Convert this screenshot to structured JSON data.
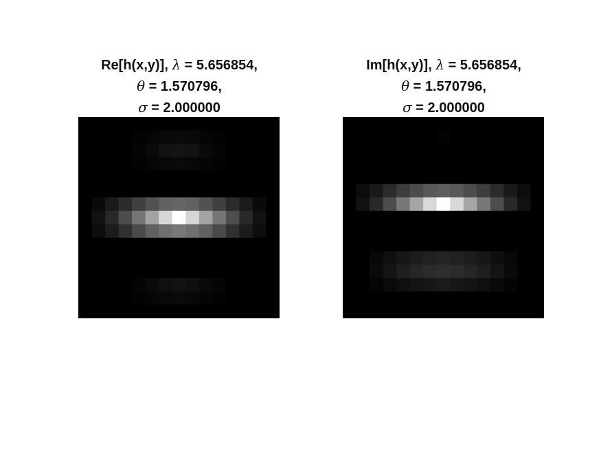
{
  "chart_data": [
    {
      "type": "heatmap",
      "colormap": "gray",
      "grid": false,
      "title_lines": [
        {
          "parts": [
            {
              "text": "Re[h(x,y)], ",
              "greek": false
            },
            {
              "text": "λ",
              "greek": true
            },
            {
              "text": " = 5.656854,",
              "greek": false
            }
          ]
        },
        {
          "parts": [
            {
              "text": "θ",
              "greek": true
            },
            {
              "text": " = 1.570796,",
              "greek": false
            }
          ]
        },
        {
          "parts": [
            {
              "text": "σ",
              "greek": true
            },
            {
              "text": " = 2.000000",
              "greek": false
            }
          ]
        }
      ],
      "rows": 15,
      "cols": 15,
      "values": [
        [
          0,
          0,
          0,
          0,
          0,
          0,
          0,
          0,
          0,
          0,
          0,
          0,
          0,
          0,
          0
        ],
        [
          0,
          0,
          0,
          0,
          0.01,
          0.02,
          0.03,
          0.04,
          0.03,
          0.02,
          0.01,
          0,
          0,
          0,
          0
        ],
        [
          0,
          0,
          0,
          0,
          0.02,
          0.04,
          0.07,
          0.08,
          0.07,
          0.04,
          0.02,
          0,
          0,
          0,
          0
        ],
        [
          0,
          0,
          0,
          0,
          0.01,
          0.02,
          0.03,
          0.04,
          0.03,
          0.02,
          0.01,
          0,
          0,
          0,
          0
        ],
        [
          0,
          0,
          0,
          0,
          0,
          0,
          0,
          0,
          0,
          0,
          0,
          0,
          0,
          0,
          0
        ],
        [
          0,
          0,
          0,
          0,
          0,
          0,
          0,
          0,
          0,
          0,
          0,
          0,
          0,
          0,
          0
        ],
        [
          0,
          0.04,
          0.1,
          0.17,
          0.25,
          0.32,
          0.38,
          0.4,
          0.38,
          0.32,
          0.25,
          0.17,
          0.1,
          0.04,
          0
        ],
        [
          0,
          0.07,
          0.16,
          0.3,
          0.46,
          0.64,
          0.84,
          1.0,
          0.84,
          0.64,
          0.46,
          0.3,
          0.16,
          0.07,
          0
        ],
        [
          0,
          0.05,
          0.11,
          0.19,
          0.29,
          0.38,
          0.44,
          0.47,
          0.44,
          0.38,
          0.29,
          0.19,
          0.11,
          0.05,
          0
        ],
        [
          0,
          0,
          0,
          0,
          0,
          0,
          0,
          0,
          0,
          0,
          0,
          0,
          0,
          0,
          0
        ],
        [
          0,
          0,
          0,
          0,
          0,
          0,
          0,
          0,
          0,
          0,
          0,
          0,
          0,
          0,
          0
        ],
        [
          0,
          0,
          0,
          0,
          0,
          0,
          0,
          0,
          0,
          0,
          0,
          0,
          0,
          0,
          0
        ],
        [
          0,
          0,
          0,
          0,
          0.02,
          0.04,
          0.06,
          0.07,
          0.06,
          0.04,
          0.02,
          0,
          0,
          0,
          0
        ],
        [
          0,
          0,
          0,
          0,
          0.01,
          0.02,
          0.03,
          0.04,
          0.03,
          0.02,
          0.01,
          0,
          0,
          0,
          0
        ],
        [
          0,
          0,
          0,
          0,
          0,
          0,
          0,
          0,
          0,
          0,
          0,
          0,
          0,
          0,
          0
        ]
      ]
    },
    {
      "type": "heatmap",
      "colormap": "gray",
      "grid": false,
      "title_lines": [
        {
          "parts": [
            {
              "text": "Im[h(x,y)], ",
              "greek": false
            },
            {
              "text": "λ",
              "greek": true
            },
            {
              "text": " = 5.656854,",
              "greek": false
            }
          ]
        },
        {
          "parts": [
            {
              "text": "θ",
              "greek": true
            },
            {
              "text": " = 1.570796,",
              "greek": false
            }
          ]
        },
        {
          "parts": [
            {
              "text": "σ",
              "greek": true
            },
            {
              "text": " = 2.000000",
              "greek": false
            }
          ]
        }
      ],
      "rows": 15,
      "cols": 15,
      "values": [
        [
          0,
          0,
          0,
          0,
          0,
          0,
          0,
          0,
          0,
          0,
          0,
          0,
          0,
          0,
          0
        ],
        [
          0,
          0,
          0,
          0,
          0,
          0,
          0,
          0.01,
          0,
          0,
          0,
          0,
          0,
          0,
          0
        ],
        [
          0,
          0,
          0,
          0,
          0,
          0,
          0,
          0,
          0,
          0,
          0,
          0,
          0,
          0,
          0
        ],
        [
          0,
          0,
          0,
          0,
          0,
          0,
          0,
          0,
          0,
          0,
          0,
          0,
          0,
          0,
          0
        ],
        [
          0,
          0,
          0,
          0,
          0,
          0,
          0,
          0,
          0,
          0,
          0,
          0,
          0,
          0,
          0
        ],
        [
          0,
          0.05,
          0.1,
          0.17,
          0.24,
          0.3,
          0.35,
          0.37,
          0.35,
          0.3,
          0.24,
          0.17,
          0.1,
          0.05,
          0
        ],
        [
          0,
          0.07,
          0.16,
          0.3,
          0.47,
          0.65,
          0.85,
          1.0,
          0.85,
          0.65,
          0.47,
          0.3,
          0.16,
          0.07,
          0
        ],
        [
          0,
          0,
          0,
          0,
          0,
          0,
          0,
          0,
          0,
          0,
          0,
          0,
          0,
          0,
          0
        ],
        [
          0,
          0,
          0,
          0,
          0,
          0,
          0,
          0,
          0,
          0,
          0,
          0,
          0,
          0,
          0
        ],
        [
          0,
          0,
          0,
          0,
          0,
          0,
          0,
          0,
          0,
          0,
          0,
          0,
          0,
          0,
          0
        ],
        [
          0,
          0,
          0.03,
          0.06,
          0.09,
          0.11,
          0.13,
          0.14,
          0.13,
          0.11,
          0.09,
          0.06,
          0.03,
          0,
          0
        ],
        [
          0,
          0,
          0.04,
          0.08,
          0.12,
          0.15,
          0.17,
          0.18,
          0.17,
          0.15,
          0.12,
          0.08,
          0.04,
          0,
          0
        ],
        [
          0,
          0,
          0.02,
          0.04,
          0.06,
          0.08,
          0.09,
          0.1,
          0.09,
          0.08,
          0.06,
          0.04,
          0.02,
          0,
          0
        ],
        [
          0,
          0,
          0,
          0,
          0,
          0,
          0,
          0,
          0,
          0,
          0,
          0,
          0,
          0,
          0
        ],
        [
          0,
          0,
          0,
          0,
          0,
          0,
          0,
          0,
          0,
          0,
          0,
          0,
          0,
          0,
          0
        ]
      ]
    }
  ]
}
